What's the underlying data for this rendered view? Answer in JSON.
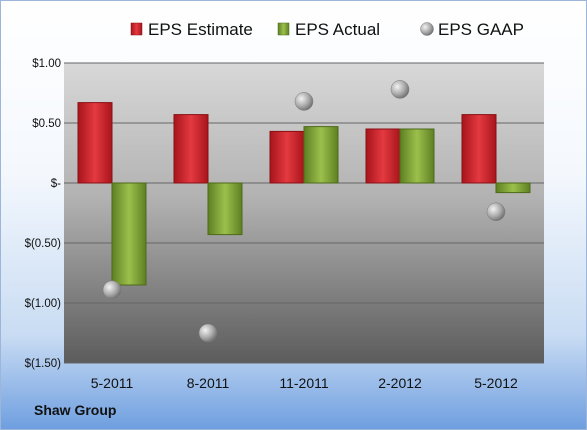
{
  "company": "Shaw Group",
  "chart_data": {
    "type": "bar",
    "categories": [
      "5-2011",
      "8-2011",
      "11-2011",
      "2-2012",
      "5-2012"
    ],
    "series": [
      {
        "name": "EPS Estimate",
        "kind": "bar",
        "color": "#d0212a",
        "values": [
          0.67,
          0.57,
          0.43,
          0.45,
          0.57
        ]
      },
      {
        "name": "EPS Actual",
        "kind": "bar",
        "color": "#86aa3a",
        "values": [
          -0.85,
          -0.43,
          0.47,
          0.45,
          -0.08
        ]
      },
      {
        "name": "EPS GAAP",
        "kind": "marker",
        "color": "#aaaaaa",
        "values": [
          -0.89,
          -1.25,
          0.68,
          0.78,
          -0.24
        ]
      }
    ],
    "ylim": [
      -1.5,
      1.0
    ],
    "yticks": [
      1.0,
      0.5,
      0.0,
      -0.5,
      -1.0,
      -1.5
    ],
    "ytick_labels": [
      "$1.00",
      "$0.50",
      "$-",
      "$(0.50)",
      "$(1.00)",
      "$(1.50)"
    ],
    "grid": true,
    "legend_position": "top"
  }
}
